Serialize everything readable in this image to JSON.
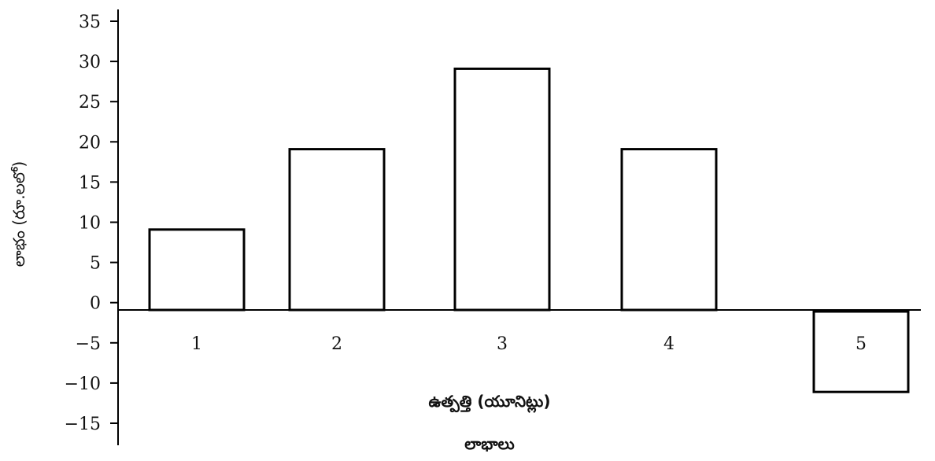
{
  "chart_data": {
    "type": "bar",
    "title": "లాభాలు",
    "xlabel": "ఉత్పత్తి (యూనిట్లు)",
    "ylabel": "లాభం (రూ.లలో)",
    "categories": [
      "1",
      "2",
      "3",
      "4",
      "5"
    ],
    "values": [
      10,
      20,
      30,
      20,
      -10
    ],
    "yticks": [
      "35",
      "30",
      "25",
      "20",
      "15",
      "10",
      "5",
      "0",
      "−5",
      "−10",
      "−15"
    ],
    "ylim": [
      -15,
      35
    ],
    "grid": false,
    "legend": "none",
    "bar_fill": "#ffffff",
    "bar_stroke": "#000000"
  }
}
